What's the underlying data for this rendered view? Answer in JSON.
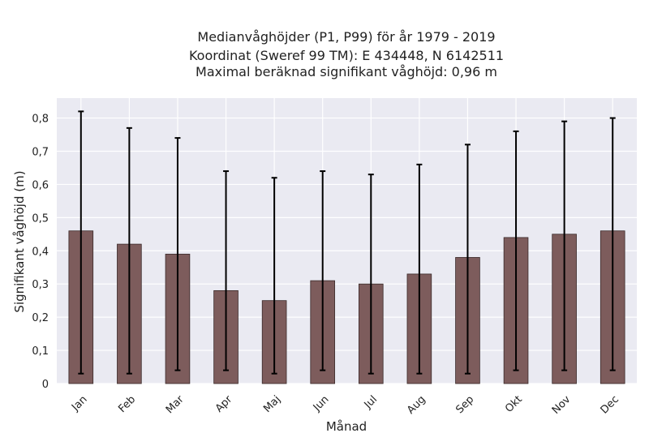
{
  "chart_data": {
    "type": "bar",
    "title_lines": [
      "Medianvåghöjder (P1, P99) för år 1979 - 2019",
      "Koordinat (Sweref 99 TM): E 434448, N 6142511",
      "Maximal beräknad signifikant våghöjd: 0,96 m"
    ],
    "xlabel": "Månad",
    "ylabel": "Signifikant våghöjd (m)",
    "categories": [
      "Jan",
      "Feb",
      "Mar",
      "Apr",
      "Maj",
      "Jun",
      "Jul",
      "Aug",
      "Sep",
      "Okt",
      "Nov",
      "Dec"
    ],
    "values": [
      0.46,
      0.42,
      0.39,
      0.28,
      0.25,
      0.31,
      0.3,
      0.33,
      0.38,
      0.44,
      0.45,
      0.46
    ],
    "error_low": [
      0.03,
      0.03,
      0.04,
      0.04,
      0.03,
      0.04,
      0.03,
      0.03,
      0.03,
      0.04,
      0.04,
      0.04
    ],
    "error_high": [
      0.82,
      0.77,
      0.74,
      0.64,
      0.62,
      0.64,
      0.63,
      0.66,
      0.72,
      0.76,
      0.79,
      0.8
    ],
    "ylim": [
      0,
      0.86
    ],
    "yticks": [
      0,
      0.1,
      0.2,
      0.3,
      0.4,
      0.5,
      0.6,
      0.7,
      0.8
    ],
    "ytick_labels": [
      "0",
      "0,1",
      "0,2",
      "0,3",
      "0,4",
      "0,5",
      "0,6",
      "0,7",
      "0,8"
    ],
    "grid": true,
    "colors": {
      "bar": "#7d5c5c",
      "bar_edge": "#3a2a2a",
      "error": "#000000",
      "plot_bg": "#eaeaf2",
      "grid": "#ffffff"
    }
  }
}
